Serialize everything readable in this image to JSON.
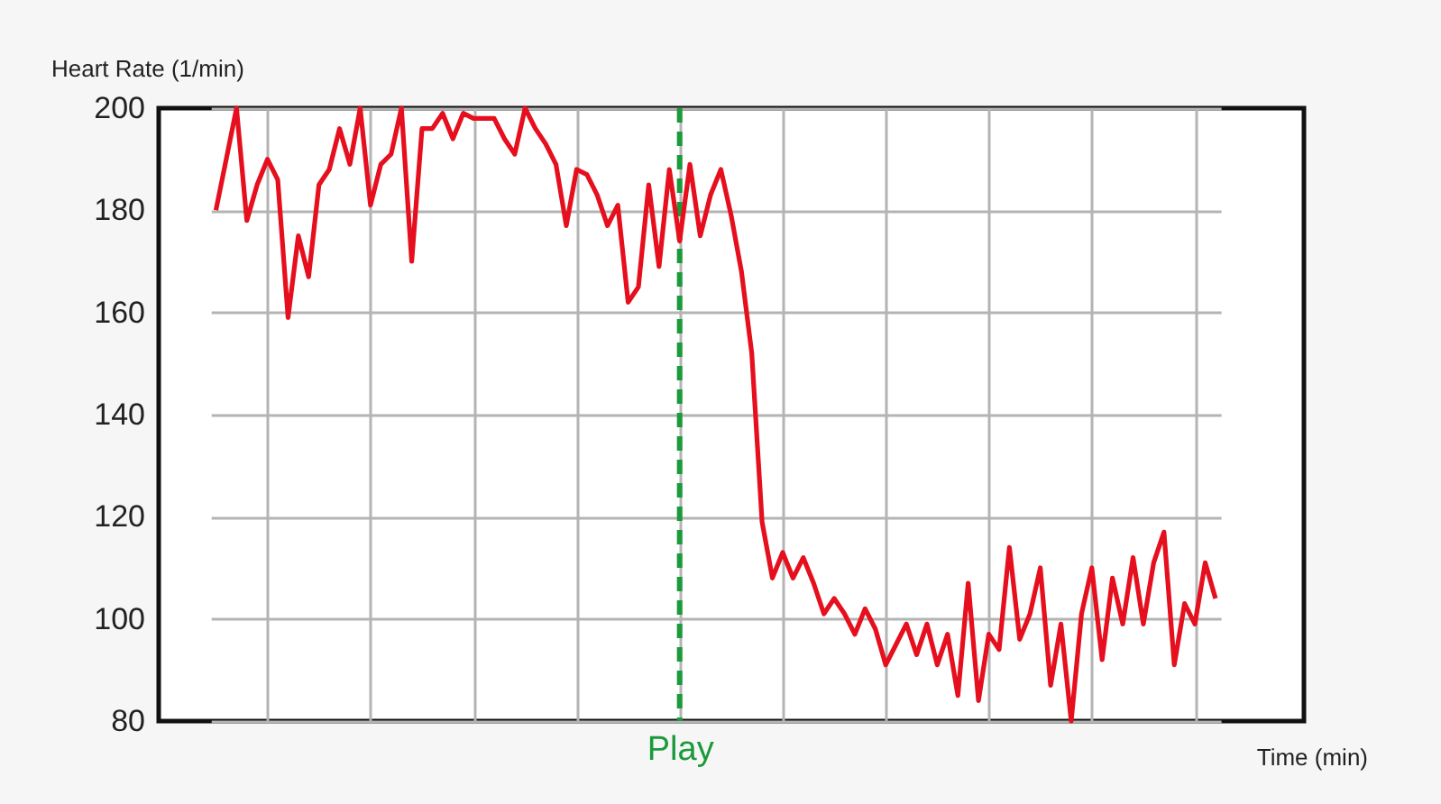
{
  "chart_data": {
    "type": "line",
    "xlabel": "Time (min)",
    "ylabel": "Heart Rate (1/min)",
    "categories": [
      null,
      null,
      null,
      null,
      null,
      null,
      null,
      null,
      null,
      null,
      null,
      null,
      null,
      null,
      null,
      null,
      null,
      null,
      null,
      null,
      null,
      null,
      null,
      null,
      null,
      null,
      null,
      null,
      null,
      null,
      null,
      null,
      null,
      null,
      null,
      null,
      null,
      null,
      null,
      null,
      null,
      null,
      null,
      null,
      null,
      "Play",
      null,
      null,
      null,
      null,
      null,
      null,
      null,
      null,
      null,
      null,
      null,
      null,
      null,
      null,
      null,
      null,
      null,
      null,
      null,
      null,
      null,
      null,
      null,
      null,
      null,
      null,
      null,
      null,
      null,
      null,
      null,
      null,
      null,
      null,
      null,
      null,
      null,
      null,
      null,
      null,
      null,
      null,
      null,
      null,
      null,
      null,
      null,
      null,
      null,
      null,
      null,
      null
    ],
    "series": [
      {
        "color": "#e60f1e",
        "values": [
          180,
          190,
          200,
          178,
          185,
          190,
          186,
          159,
          175,
          167,
          185,
          188,
          196,
          189,
          200,
          181,
          189,
          191,
          200,
          170,
          196,
          196,
          199,
          194,
          199,
          198,
          198,
          198,
          194,
          191,
          200,
          196,
          193,
          189,
          177,
          188,
          187,
          183,
          177,
          181,
          162,
          165,
          185,
          169,
          188,
          174,
          189,
          175,
          183,
          188,
          179,
          168,
          152,
          119,
          108,
          113,
          108,
          112,
          107,
          101,
          104,
          101,
          97,
          102,
          98,
          91,
          95,
          99,
          93,
          99,
          91,
          97,
          85,
          107,
          84,
          97,
          94,
          114,
          96,
          101,
          110,
          87,
          99,
          80,
          101,
          110,
          92,
          108,
          99,
          112,
          99,
          111,
          117,
          91,
          103,
          99,
          111,
          104
        ]
      }
    ],
    "ylim": [
      80,
      200
    ],
    "yticks": [
      80,
      100,
      120,
      140,
      160,
      180,
      200
    ],
    "grid": true,
    "ref_lines": [
      {
        "axis": "x",
        "value": "Play",
        "color": "#1a9a3a",
        "line_style": "dashed"
      }
    ]
  }
}
